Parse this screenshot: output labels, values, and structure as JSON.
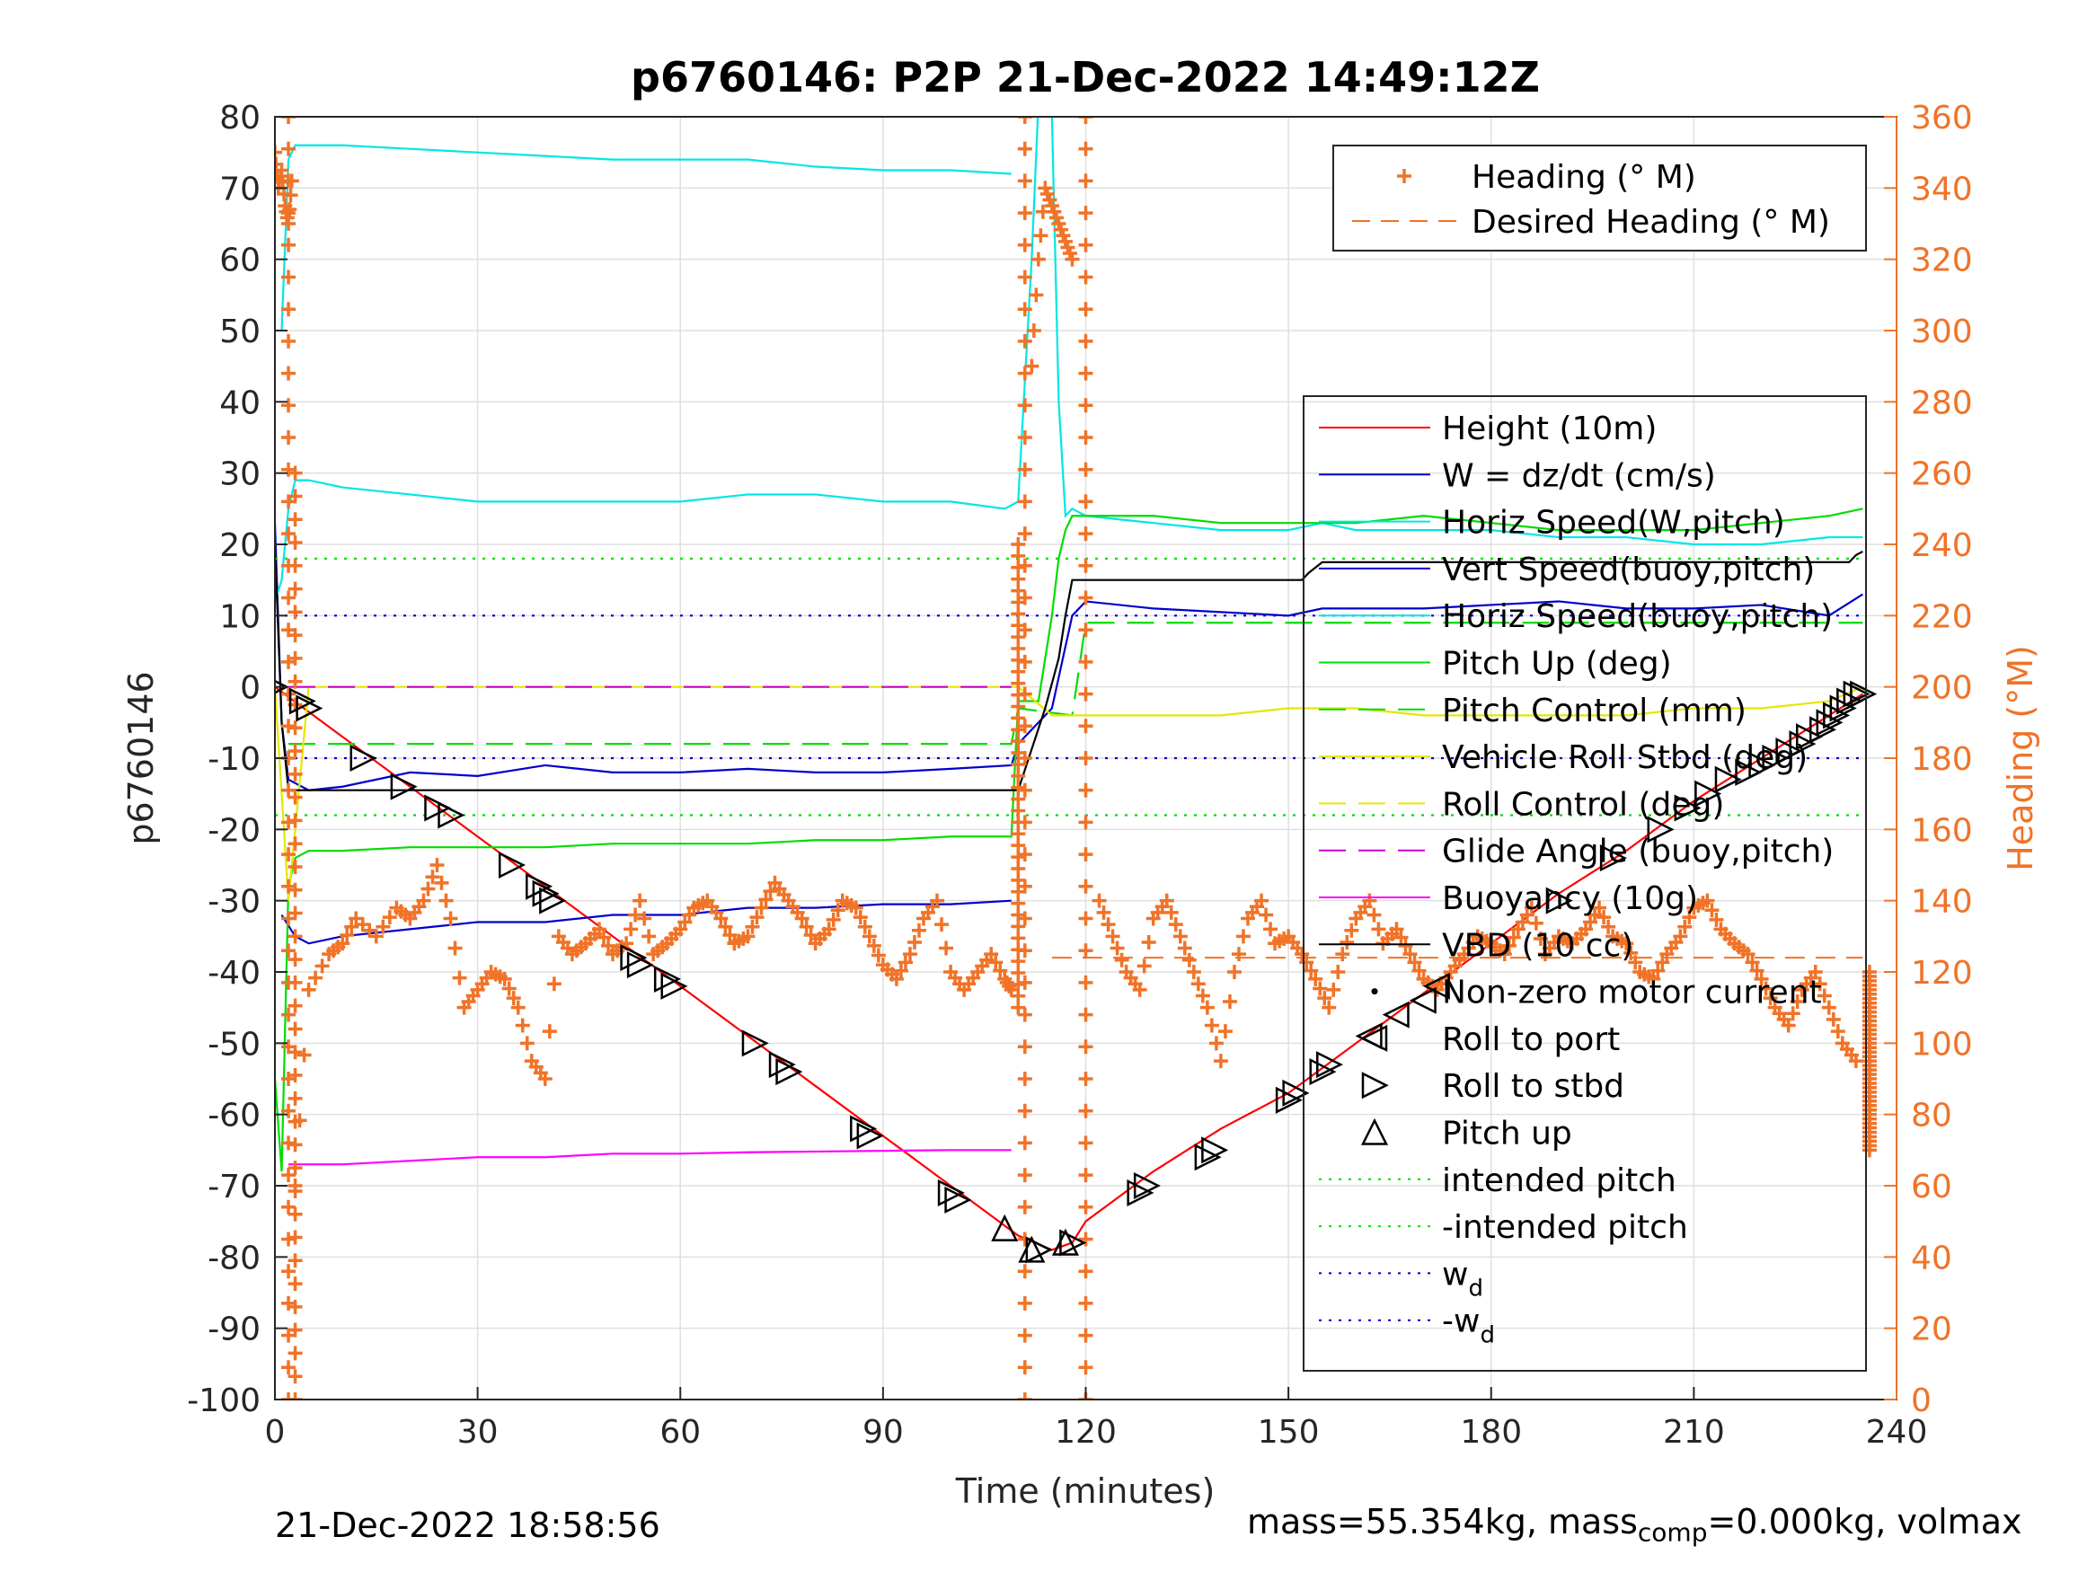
{
  "chart_data": {
    "type": "line",
    "title": "p6760146: P2P 21-Dec-2022 14:49:12Z",
    "xlabel": "Time (minutes)",
    "ylabel": "p6760146",
    "ylabel_right": "Heading (°M)",
    "xlim": [
      0,
      240
    ],
    "ylim": [
      -100,
      80
    ],
    "ylim_right": [
      0,
      360
    ],
    "x_ticks": [
      "0",
      "30",
      "60",
      "90",
      "120",
      "150",
      "180",
      "210",
      "240"
    ],
    "y_ticks": [
      "80",
      "70",
      "60",
      "50",
      "40",
      "30",
      "20",
      "10",
      "0",
      "-10",
      "-20",
      "-30",
      "-40",
      "-50",
      "-60",
      "-70",
      "-80",
      "-90",
      "-100"
    ],
    "y_ticks_right": [
      "360",
      "340",
      "320",
      "300",
      "280",
      "260",
      "240",
      "220",
      "200",
      "180",
      "160",
      "140",
      "120",
      "100",
      "80",
      "60",
      "40",
      "20",
      "0"
    ],
    "grid": true,
    "legend_top": {
      "placement": "top-right",
      "entries": [
        {
          "label": "Heading (° M)",
          "color": "#f07328",
          "style": "plus"
        },
        {
          "label": "Desired Heading (° M)",
          "color": "#f07328",
          "style": "dash"
        }
      ]
    },
    "legend_main": {
      "placement": "right",
      "entries": [
        {
          "label": "Height (10m)",
          "color": "#ff0000",
          "style": "solid"
        },
        {
          "label": "W = dz/dt (cm/s)",
          "color": "#0000cc",
          "style": "solid"
        },
        {
          "label": "Horiz Speed(W,pitch)",
          "color": "#00e6e6",
          "style": "solid"
        },
        {
          "label": "Vert Speed(buoy,pitch)",
          "color": "#0000cc",
          "style": "solid"
        },
        {
          "label": "Horiz Speed(buoy,pitch)",
          "color": "#00e6e6",
          "style": "solid"
        },
        {
          "label": "Pitch Up (deg)",
          "color": "#00dd00",
          "style": "solid"
        },
        {
          "label": "Pitch Control (mm)",
          "color": "#00dd00",
          "style": "dash"
        },
        {
          "label": "Vehicle Roll Stbd (deg)",
          "color": "#e6e600",
          "style": "solid"
        },
        {
          "label": "Roll Control (deg)",
          "color": "#e6e600",
          "style": "dash"
        },
        {
          "label": "Glide Angle (buoy,pitch)",
          "color": "#cc00cc",
          "style": "dash"
        },
        {
          "label": "Buoyancy (10g)",
          "color": "#ff00ff",
          "style": "solid"
        },
        {
          "label": "VBD (10 cc)",
          "color": "#000000",
          "style": "solid"
        },
        {
          "label": "Non-zero motor current",
          "color": "#000000",
          "style": "dot"
        },
        {
          "label": "Roll to port",
          "color": "#000000",
          "style": "tri-left"
        },
        {
          "label": "Roll to stbd",
          "color": "#000000",
          "style": "tri-right"
        },
        {
          "label": "Pitch up",
          "color": "#000000",
          "style": "tri-up"
        },
        {
          "label": "intended pitch",
          "color": "#00dd00",
          "style": "dotted"
        },
        {
          "label": "-intended pitch",
          "color": "#00dd00",
          "style": "dotted"
        },
        {
          "label": "w",
          "sub": "d",
          "color": "#0000cc",
          "style": "dotted"
        },
        {
          "label": "-w",
          "sub": "d",
          "color": "#0000cc",
          "style": "dotted"
        }
      ]
    },
    "series": [
      {
        "name": "Height (10m)",
        "color": "#ff0000",
        "x": [
          0,
          10,
          20,
          30,
          40,
          50,
          60,
          70,
          80,
          90,
          100,
          110,
          115,
          118,
          120,
          130,
          140,
          150,
          160,
          170,
          180,
          190,
          200,
          210,
          220,
          230,
          235
        ],
        "y": [
          0,
          -7,
          -14,
          -21,
          -28,
          -35,
          -42,
          -49,
          -56,
          -63,
          -70,
          -77,
          -79,
          -78,
          -75,
          -68,
          -62,
          -57,
          -50,
          -43,
          -36,
          -29,
          -23,
          -16,
          -10,
          -4,
          -1
        ]
      },
      {
        "name": "W = dz/dt (cm/s)",
        "color": "#0000cc",
        "x": [
          0,
          1,
          2,
          5,
          10,
          20,
          30,
          40,
          50,
          60,
          70,
          80,
          90,
          100,
          109,
          110,
          115,
          118,
          120,
          130,
          140,
          150,
          155,
          160,
          170,
          180,
          190,
          200,
          210,
          220,
          230,
          235
        ],
        "y": [
          23,
          -5,
          -13,
          -14.5,
          -14,
          -12,
          -12.5,
          -11,
          -12,
          -12,
          -11.5,
          -12,
          -12,
          -11.5,
          -11,
          -8,
          -3,
          10,
          12,
          11,
          10.5,
          10,
          11,
          11,
          11,
          11.5,
          12,
          11,
          11,
          11.5,
          10,
          13
        ]
      },
      {
        "name": "Vert Speed(buoy,pitch)",
        "color": "#0000cc",
        "x": [
          1,
          3,
          5,
          10,
          20,
          30,
          40,
          50,
          60,
          70,
          80,
          90,
          100,
          109
        ],
        "y": [
          -32,
          -35,
          -36,
          -35,
          -34,
          -33,
          -33,
          -32,
          -32,
          -31,
          -31,
          -30.5,
          -30.5,
          -30
        ]
      },
      {
        "name": "Horiz Speed(W,pitch)",
        "color": "#00e6e6",
        "x": [
          0,
          1,
          2,
          3,
          5,
          10,
          20,
          30,
          40,
          50,
          60,
          70,
          80,
          90,
          100,
          108,
          110,
          112,
          113,
          115,
          116,
          117,
          118,
          120,
          130,
          140,
          150,
          155,
          160,
          170,
          180,
          190,
          200,
          210,
          220,
          230,
          235
        ],
        "y": [
          12,
          15,
          25,
          29,
          29,
          28,
          27,
          26,
          26,
          26,
          26,
          27,
          27,
          26,
          26,
          25,
          26,
          60,
          82,
          80,
          40,
          24,
          25,
          24,
          23,
          22,
          22,
          23,
          22,
          22,
          22,
          21,
          21,
          20,
          20,
          21,
          21
        ]
      },
      {
        "name": "Horiz Speed(buoy,pitch)",
        "color": "#00e6e6",
        "x": [
          1,
          2,
          3,
          10,
          20,
          30,
          40,
          50,
          60,
          70,
          80,
          90,
          100,
          109
        ],
        "y": [
          50,
          74,
          76,
          76,
          75.5,
          75,
          74.5,
          74,
          74,
          74,
          73,
          72.5,
          72.5,
          72
        ]
      },
      {
        "name": "Pitch Up (deg)",
        "color": "#00dd00",
        "x": [
          0,
          1,
          2,
          3,
          5,
          10,
          20,
          30,
          40,
          50,
          60,
          70,
          80,
          90,
          100,
          109,
          110,
          113,
          115,
          116,
          117,
          118,
          120,
          130,
          140,
          150,
          160,
          170,
          180,
          190,
          200,
          210,
          220,
          230,
          235
        ],
        "y": [
          -55,
          -68,
          -28,
          -24,
          -23,
          -23,
          -22.5,
          -22.5,
          -22.5,
          -22,
          -22,
          -22,
          -21.5,
          -21.5,
          -21,
          -21,
          -2,
          -2,
          10,
          18,
          22,
          24,
          24,
          24,
          23,
          23,
          23,
          24,
          23,
          22,
          22,
          22,
          23,
          24,
          25
        ]
      },
      {
        "name": "Pitch Control (mm)",
        "color": "#00dd00",
        "x": [
          2,
          108,
          109,
          110,
          118,
          120,
          235
        ],
        "y": [
          -8,
          -8,
          -8,
          -3,
          -4,
          9,
          9
        ]
      },
      {
        "name": "Vehicle Roll Stbd (deg)",
        "color": "#e6e600",
        "x": [
          0,
          2,
          5,
          10,
          20,
          30,
          40,
          50,
          60,
          70,
          80,
          90,
          100,
          110,
          115,
          120,
          130,
          140,
          150,
          160,
          170,
          180,
          190,
          200,
          210,
          220,
          230,
          235
        ],
        "y": [
          0,
          -30,
          0,
          0,
          0,
          0,
          0,
          0,
          0,
          0,
          0,
          0,
          0,
          0,
          -4,
          -4,
          -4,
          -4,
          -3,
          -3,
          -4,
          -4,
          -4,
          -4,
          -3,
          -3,
          -2,
          0
        ]
      },
      {
        "name": "Glide Angle (buoy,pitch)",
        "color": "#cc00cc",
        "x": [
          2,
          109
        ],
        "y": [
          0,
          0
        ]
      },
      {
        "name": "Buoyancy (10g)",
        "color": "#ff00ff",
        "x": [
          2,
          10,
          20,
          30,
          40,
          50,
          60,
          70,
          80,
          90,
          100,
          109
        ],
        "y": [
          -67,
          -67,
          -66.5,
          -66,
          -66,
          -65.5,
          -65.5,
          -65.3,
          -65.2,
          -65.1,
          -65,
          -65
        ]
      },
      {
        "name": "VBD (10 cc)",
        "color": "#000000",
        "x": [
          0,
          1,
          2,
          10,
          30,
          50,
          80,
          100,
          109,
          110,
          114,
          116,
          117,
          118,
          120,
          150,
          152,
          153,
          155,
          160,
          200,
          233,
          234,
          235
        ],
        "y": [
          20,
          -5,
          -14.5,
          -14.5,
          -14.5,
          -14.5,
          -14.5,
          -14.5,
          -14.5,
          -14.5,
          -3,
          4,
          10,
          15,
          15,
          15,
          15,
          16,
          17.5,
          17.5,
          17.5,
          17.5,
          18.5,
          19
        ]
      },
      {
        "name": "intended pitch",
        "color": "#00dd00",
        "x": [
          0,
          235
        ],
        "y": [
          18,
          18
        ]
      },
      {
        "name": "-intended pitch",
        "color": "#00dd00",
        "x": [
          0,
          235
        ],
        "y": [
          -18,
          -18
        ]
      },
      {
        "name": "w",
        "color": "#0000cc",
        "x": [
          0,
          235
        ],
        "y": [
          10,
          10
        ]
      },
      {
        "name": "-w",
        "color": "#0000cc",
        "x": [
          0,
          235
        ],
        "y": [
          -10,
          -10
        ]
      }
    ],
    "desired_heading": {
      "name": "Desired Heading (° M)",
      "color": "#f07328",
      "segments": [
        {
          "x": [
            0,
            109
          ],
          "y": [
            0,
            0
          ]
        },
        {
          "x": [
            115,
            235
          ],
          "y": [
            124,
            124
          ]
        }
      ]
    },
    "markers": {
      "roll_to_stbd": {
        "x": [
          0,
          4,
          5,
          13,
          19,
          24,
          26,
          35,
          39,
          40,
          41,
          53,
          54,
          58,
          59,
          71,
          75,
          76,
          87,
          88,
          100,
          101,
          113,
          118,
          128,
          129,
          138,
          139,
          150,
          151,
          155,
          156,
          190,
          198,
          205,
          209,
          212,
          215,
          218,
          220,
          222,
          224,
          226,
          227,
          229,
          230,
          231,
          232,
          233,
          234,
          235
        ],
        "y": [
          0,
          -2,
          -3,
          -10,
          -14,
          -17,
          -18,
          -25,
          -28,
          -29,
          -30,
          -38,
          -39,
          -41,
          -42,
          -50,
          -53,
          -54,
          -62,
          -63,
          -71,
          -72,
          -79,
          -78,
          -71,
          -70,
          -66,
          -65,
          -58,
          -57,
          -54,
          -53,
          -30,
          -24,
          -20,
          -17,
          -15,
          -13,
          -12,
          -11,
          -10,
          -9,
          -8,
          -7,
          -6,
          -5,
          -4,
          -3,
          -2,
          -1,
          -1
        ]
      },
      "roll_to_port": {
        "x": [
          162,
          166,
          170,
          172
        ],
        "y": [
          -49,
          -46,
          -44,
          -42
        ]
      },
      "pitch_up": {
        "x": [
          108,
          112,
          117
        ],
        "y": [
          -76,
          -79,
          -78
        ]
      }
    },
    "heading_clusters": [
      {
        "x": [
          0,
          0.5,
          1,
          1.5,
          2,
          2.5
        ],
        "y": [
          350,
          340,
          345,
          335,
          330,
          342
        ]
      },
      {
        "x": [
          3,
          5,
          8,
          10,
          12,
          15,
          18,
          20,
          22,
          24,
          26,
          28,
          30,
          32,
          34,
          36,
          38,
          40,
          42,
          44,
          46,
          48,
          50,
          52,
          54,
          56,
          58,
          60,
          62,
          64,
          66,
          68,
          70,
          72,
          74,
          76,
          78,
          80,
          82,
          84,
          86,
          88,
          90,
          92,
          94,
          96,
          98,
          100,
          102,
          104,
          106,
          108,
          109
        ],
        "y": [
          60,
          115,
          125,
          128,
          135,
          130,
          138,
          135,
          140,
          150,
          135,
          110,
          115,
          120,
          118,
          110,
          95,
          90,
          130,
          125,
          128,
          132,
          125,
          128,
          140,
          125,
          128,
          132,
          138,
          140,
          135,
          128,
          130,
          138,
          145,
          140,
          135,
          128,
          132,
          140,
          138,
          130,
          122,
          118,
          125,
          135,
          140,
          120,
          115,
          120,
          125,
          118,
          115
        ]
      },
      {
        "x": [
          112,
          113,
          114,
          115,
          116,
          117,
          118
        ],
        "y": [
          290,
          320,
          340,
          335,
          330,
          325,
          320
        ]
      },
      {
        "x": [
          122,
          124,
          126,
          128,
          130,
          132,
          134,
          136,
          138,
          140,
          142,
          144,
          146,
          148,
          150,
          152,
          154,
          156,
          158,
          160,
          162,
          164,
          166,
          168,
          170,
          172,
          174,
          176,
          178,
          180,
          182,
          184,
          186,
          188,
          190,
          192,
          194,
          196,
          198,
          200,
          202,
          204,
          206,
          208,
          210,
          212,
          214,
          216,
          218,
          220,
          222,
          224,
          226,
          228,
          230,
          232,
          234
        ],
        "y": [
          140,
          130,
          120,
          115,
          135,
          140,
          130,
          120,
          110,
          95,
          120,
          135,
          140,
          128,
          130,
          125,
          118,
          110,
          125,
          135,
          140,
          128,
          132,
          125,
          118,
          115,
          120,
          125,
          130,
          128,
          125,
          132,
          138,
          125,
          130,
          128,
          132,
          138,
          130,
          128,
          120,
          118,
          125,
          130,
          138,
          140,
          132,
          128,
          125,
          118,
          110,
          105,
          115,
          120,
          110,
          100,
          95
        ]
      }
    ],
    "heading_spikes": [
      {
        "x": 2,
        "y0": 0,
        "y1": 360
      },
      {
        "x": 3,
        "y0": 0,
        "y1": 260
      },
      {
        "x": 110,
        "y0": 110,
        "y1": 240
      },
      {
        "x": 111,
        "y0": 0,
        "y1": 360
      },
      {
        "x": 120,
        "y0": 0,
        "y1": 360
      },
      {
        "x": 236,
        "y0": 70,
        "y1": 120
      }
    ]
  },
  "footer": {
    "timestamp": "21-Dec-2022 18:58:56",
    "mass_prefix": "mass=55.354kg, mass",
    "mass_sub": "comp",
    "mass_suffix": "=0.000kg, volmax"
  }
}
